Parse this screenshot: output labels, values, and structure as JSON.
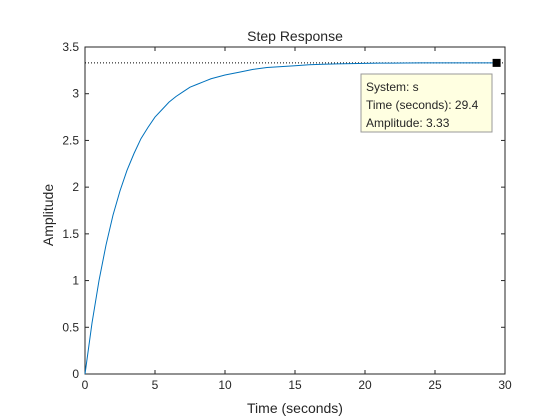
{
  "chart_data": {
    "type": "line",
    "title": "Step Response",
    "xlabel": "Time (seconds)",
    "ylabel": "Amplitude",
    "xlim": [
      0,
      30
    ],
    "ylim": [
      0,
      3.5
    ],
    "x_ticks": [
      0,
      5,
      10,
      15,
      20,
      25,
      30
    ],
    "y_ticks": [
      0,
      0.5,
      1,
      1.5,
      2,
      2.5,
      3,
      3.5
    ],
    "x_tick_labels": [
      "0",
      "5",
      "10",
      "15",
      "20",
      "25",
      "30"
    ],
    "y_tick_labels": [
      "0",
      "0.5",
      "1",
      "1.5",
      "2",
      "2.5",
      "3",
      "3.5"
    ],
    "grid": false,
    "series": [
      {
        "color": "#0072bd",
        "x": [
          0,
          0.5,
          1,
          1.5,
          2,
          2.5,
          3,
          3.5,
          4,
          4.5,
          5,
          5.5,
          6,
          6.5,
          7,
          7.5,
          8,
          8.5,
          9,
          9.5,
          10,
          11,
          12,
          13,
          14,
          15,
          16,
          17,
          18,
          19,
          20,
          21,
          22,
          23,
          24,
          25,
          26,
          27,
          28,
          29,
          29.4
        ],
        "y": [
          0,
          0.545,
          1.0,
          1.38,
          1.7,
          1.96,
          2.18,
          2.36,
          2.52,
          2.64,
          2.75,
          2.83,
          2.91,
          2.97,
          3.02,
          3.07,
          3.1,
          3.13,
          3.16,
          3.18,
          3.2,
          3.23,
          3.26,
          3.28,
          3.29,
          3.3,
          3.31,
          3.315,
          3.32,
          3.322,
          3.325,
          3.327,
          3.328,
          3.329,
          3.33,
          3.33,
          3.33,
          3.33,
          3.33,
          3.33,
          3.33
        ]
      }
    ],
    "steady_state": {
      "value": 3.33,
      "color": "#000000",
      "style": "dotted"
    },
    "datatip": {
      "x": 29.4,
      "y": 3.33,
      "lines": [
        "System: s",
        "Time (seconds): 29.4",
        "Amplitude: 3.33"
      ],
      "background": "#ffffe1",
      "border": "#999999"
    }
  }
}
